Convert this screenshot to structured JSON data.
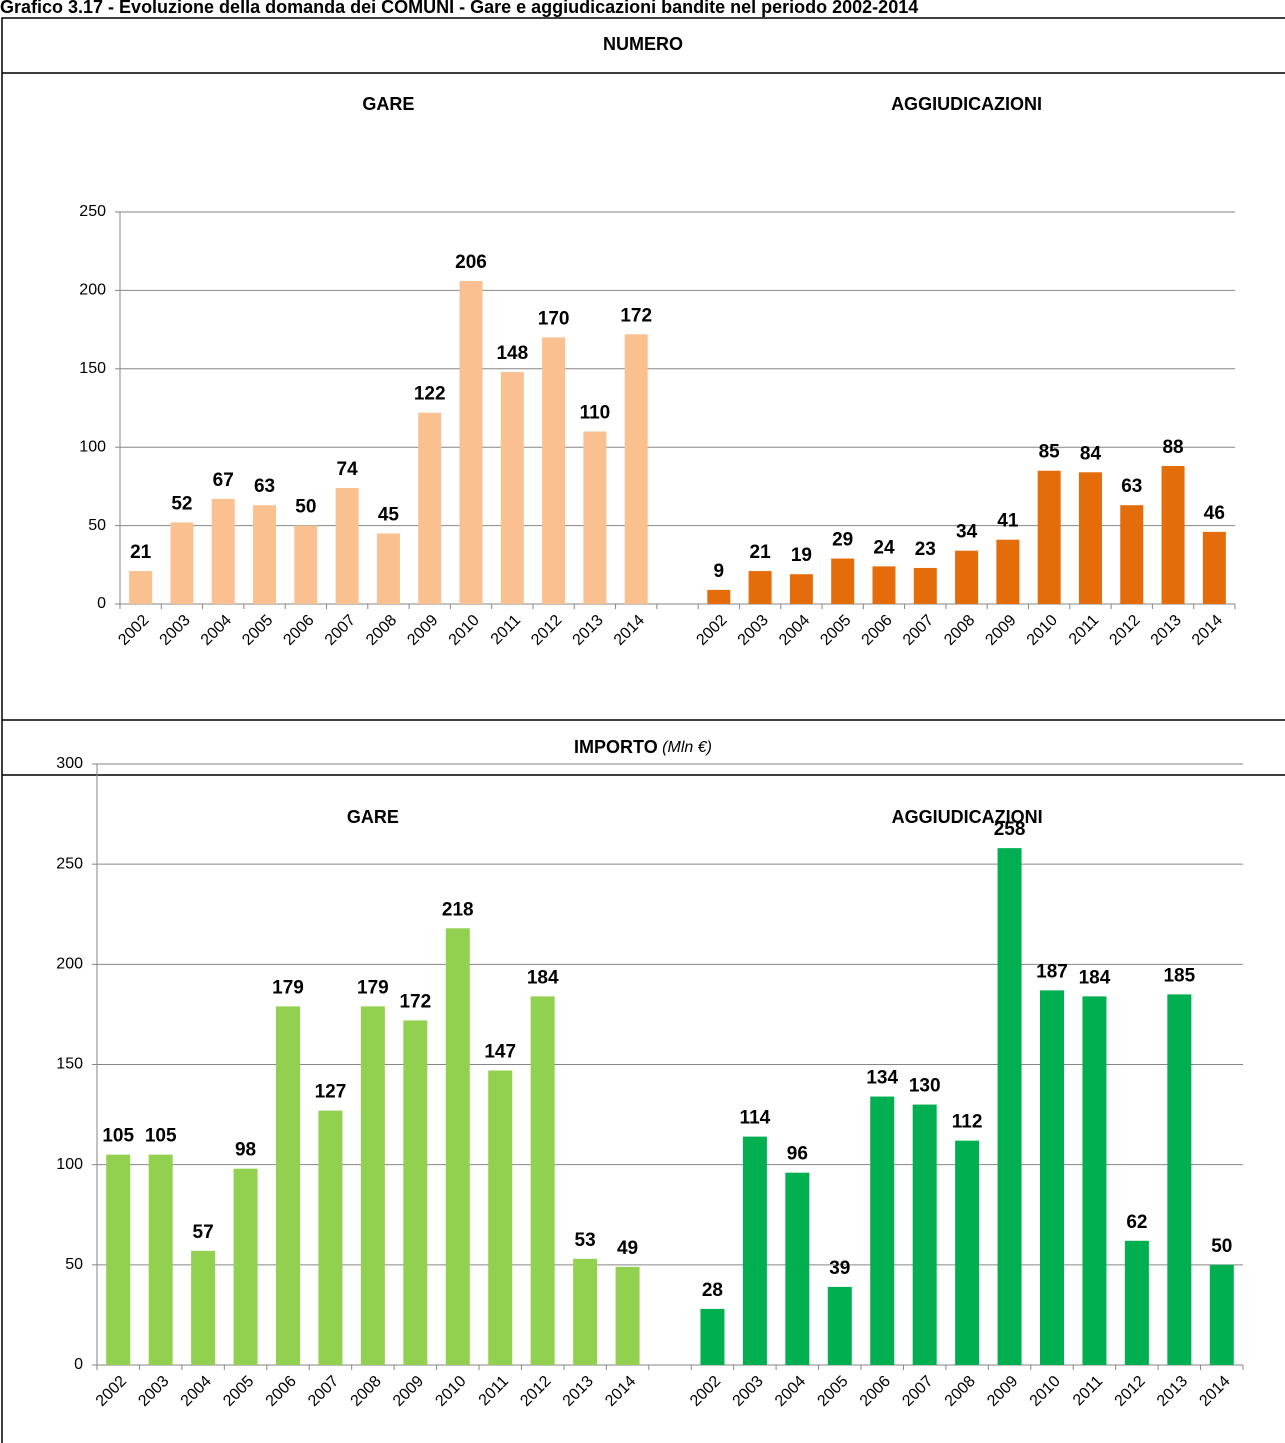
{
  "title": "Grafico 3.17 - Evoluzione della domanda dei COMUNI - Gare e aggiudicazioni bandite nel periodo 2002-2014",
  "chart_data": [
    {
      "type": "bar",
      "title": "NUMERO",
      "categories": [
        "2002",
        "2003",
        "2004",
        "2005",
        "2006",
        "2007",
        "2008",
        "2009",
        "2010",
        "2011",
        "2012",
        "2013",
        "2014"
      ],
      "series": [
        {
          "name": "GARE",
          "color": "#FAC090",
          "values": [
            21,
            52,
            67,
            63,
            50,
            74,
            45,
            122,
            206,
            148,
            170,
            110,
            172
          ]
        },
        {
          "name": "AGGIUDICAZIONI",
          "color": "#E46C0A",
          "values": [
            9,
            21,
            19,
            29,
            24,
            23,
            34,
            41,
            85,
            84,
            63,
            88,
            46
          ]
        }
      ],
      "ylim": [
        0,
        250
      ],
      "yticks": [
        0,
        50,
        100,
        150,
        200,
        250
      ],
      "grid": true
    },
    {
      "type": "bar",
      "title": "IMPORTO",
      "subtitle": "(Mln €)",
      "categories": [
        "2002",
        "2003",
        "2004",
        "2005",
        "2006",
        "2007",
        "2008",
        "2009",
        "2010",
        "2011",
        "2012",
        "2013",
        "2014"
      ],
      "series": [
        {
          "name": "GARE",
          "color": "#92D050",
          "values": [
            105,
            105,
            57,
            98,
            179,
            127,
            179,
            172,
            218,
            147,
            184,
            53,
            49
          ]
        },
        {
          "name": "AGGIUDICAZIONI",
          "color": "#00B050",
          "values": [
            28,
            114,
            96,
            39,
            134,
            130,
            112,
            258,
            187,
            184,
            62,
            185,
            50
          ]
        }
      ],
      "ylim": [
        0,
        300
      ],
      "yticks": [
        0,
        50,
        100,
        150,
        200,
        250,
        300
      ],
      "grid": true
    }
  ]
}
